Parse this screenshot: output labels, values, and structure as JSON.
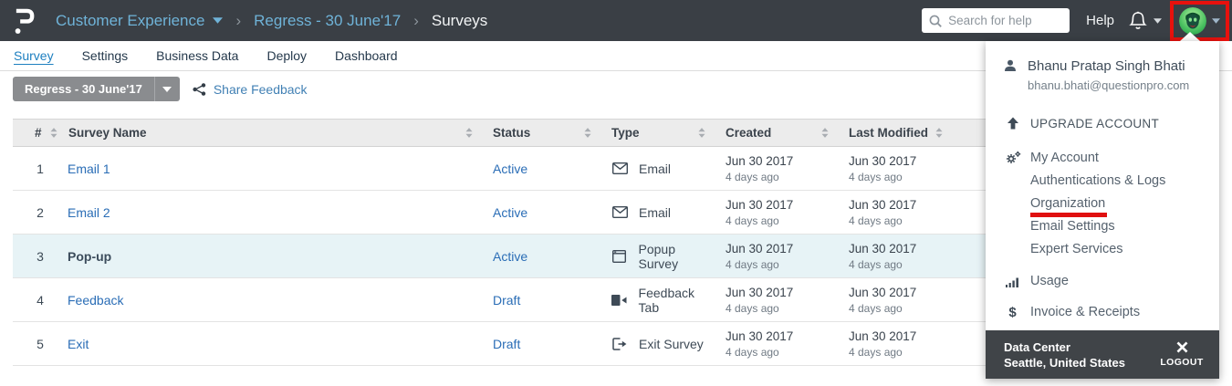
{
  "header": {
    "breadcrumb": {
      "product_label": "Customer Experience",
      "survey_label": "Regress - 30 June'17",
      "page_label": "Surveys",
      "separator": "›"
    },
    "search_placeholder": "Search for help",
    "help_label": "Help"
  },
  "nav": {
    "items": [
      {
        "label": "Survey",
        "active": true
      },
      {
        "label": "Settings",
        "active": false
      },
      {
        "label": "Business Data",
        "active": false
      },
      {
        "label": "Deploy",
        "active": false
      },
      {
        "label": "Dashboard",
        "active": false
      }
    ]
  },
  "toolbar": {
    "survey_selector_label": "Regress - 30 June'17",
    "share_feedback_label": "Share Feedback"
  },
  "table": {
    "columns": [
      {
        "label": "#"
      },
      {
        "label": "Survey Name"
      },
      {
        "label": "Status"
      },
      {
        "label": "Type"
      },
      {
        "label": "Created"
      },
      {
        "label": "Last Modified"
      }
    ],
    "rows": [
      {
        "num": "1",
        "name": "Email 1",
        "bold": false,
        "highlight": false,
        "status": "Active",
        "type": "Email",
        "type_icon": "email-icon",
        "created_date": "Jun 30 2017",
        "created_ago": "4 days ago",
        "modified_date": "Jun 30 2017",
        "modified_ago": "4 days ago"
      },
      {
        "num": "2",
        "name": "Email 2",
        "bold": false,
        "highlight": false,
        "status": "Active",
        "type": "Email",
        "type_icon": "email-icon",
        "created_date": "Jun 30 2017",
        "created_ago": "4 days ago",
        "modified_date": "Jun 30 2017",
        "modified_ago": "4 days ago"
      },
      {
        "num": "3",
        "name": "Pop-up",
        "bold": true,
        "highlight": true,
        "status": "Active",
        "type": "Popup Survey",
        "type_icon": "popup-icon",
        "created_date": "Jun 30 2017",
        "created_ago": "4 days ago",
        "modified_date": "Jun 30 2017",
        "modified_ago": "4 days ago"
      },
      {
        "num": "4",
        "name": "Feedback",
        "bold": false,
        "highlight": false,
        "status": "Draft",
        "type": "Feedback Tab",
        "type_icon": "feedback-tab-icon",
        "created_date": "Jun 30 2017",
        "created_ago": "4 days ago",
        "modified_date": "Jun 30 2017",
        "modified_ago": "4 days ago"
      },
      {
        "num": "5",
        "name": "Exit",
        "bold": false,
        "highlight": false,
        "status": "Draft",
        "type": "Exit Survey",
        "type_icon": "exit-icon",
        "created_date": "Jun 30 2017",
        "created_ago": "4 days ago",
        "modified_date": "Jun 30 2017",
        "modified_ago": "4 days ago"
      }
    ]
  },
  "user_menu": {
    "user_name": "Bhanu Pratap Singh Bhati",
    "user_email": "bhanu.bhati@questionpro.com",
    "items": [
      {
        "label": "UPGRADE ACCOUNT",
        "icon": "upgrade-arrow-icon",
        "section": "upgrade",
        "annotated": false
      },
      {
        "label": "My Account",
        "icon": "gears-icon",
        "section": "account",
        "annotated": false
      },
      {
        "label": "Authentications & Logs",
        "icon": "",
        "section": "account",
        "annotated": false
      },
      {
        "label": "Organization",
        "icon": "",
        "section": "account",
        "annotated": true
      },
      {
        "label": "Email Settings",
        "icon": "",
        "section": "account",
        "annotated": false
      },
      {
        "label": "Expert Services",
        "icon": "",
        "section": "account",
        "annotated": false
      },
      {
        "label": "Usage",
        "icon": "usage-chart-icon",
        "section": "usage",
        "annotated": false
      },
      {
        "label": "Invoice & Receipts",
        "icon": "dollar-icon",
        "section": "billing",
        "annotated": false
      }
    ],
    "footer": {
      "title": "Data Center",
      "location": "Seattle, United States",
      "logout_label": "LOGOUT"
    }
  },
  "colors": {
    "header_bg": "#3a3f45",
    "breadcrumb_blue": "#6fb3d8",
    "link_blue": "#2a6db6",
    "nav_active_blue": "#1d7fc0",
    "row_highlight": "#e7f3f6",
    "annotation_red": "#e8110d",
    "menu_footer_bg": "#404448",
    "selector_button_gray": "#8a8c8f"
  }
}
